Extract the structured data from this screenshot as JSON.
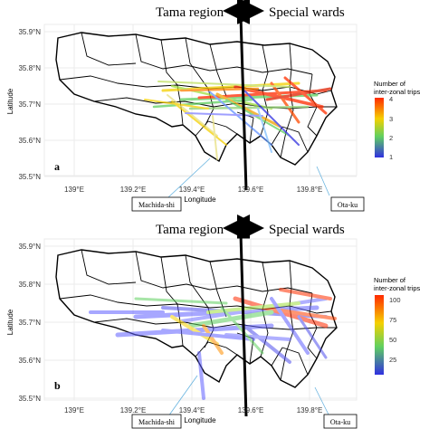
{
  "panels": [
    {
      "id": "a",
      "header": {
        "left": "Tama region",
        "right": "Special wards"
      },
      "panel_label": "a",
      "y_axis_title": "Latitude",
      "x_axis_title": "Longitude",
      "y_ticks": [
        "35.9°N",
        "35.8°N",
        "35.7°N",
        "35.6°N",
        "35.5°N"
      ],
      "x_ticks": [
        "139°E",
        "139.2°E",
        "139.4°E",
        "139.6°E",
        "139.8°E"
      ],
      "legend": {
        "title_line1": "Number of",
        "title_line2": "inter-zonal trips",
        "ticks": [
          "4",
          "3",
          "2",
          "1"
        ]
      },
      "callouts": {
        "left": "Machida-shi",
        "right": "Ota-ku"
      }
    },
    {
      "id": "b",
      "header": {
        "left": "Tama region",
        "right": "Special wards"
      },
      "panel_label": "b",
      "y_axis_title": "Latitude",
      "x_axis_title": "Longitude",
      "y_ticks": [
        "35.9°N",
        "35.8°N",
        "35.7°N",
        "35.6°N",
        "35.5°N"
      ],
      "x_ticks": [
        "139°E",
        "139.2°E",
        "139.4°E",
        "139.6°E",
        "139.8°E"
      ],
      "legend": {
        "title_line1": "Number of",
        "title_line2": "inter-zonal trips",
        "ticks": [
          "100",
          "75",
          "50",
          "25"
        ]
      },
      "callouts": {
        "left": "Machida-shi",
        "right": "Ota-ku"
      }
    }
  ],
  "colors": {
    "scale_high": "#ff2a00",
    "scale_mid_high": "#f5d000",
    "scale_mid": "#60d060",
    "scale_low": "#3030e0",
    "boundary": "#000000",
    "divider": "#000000"
  }
}
